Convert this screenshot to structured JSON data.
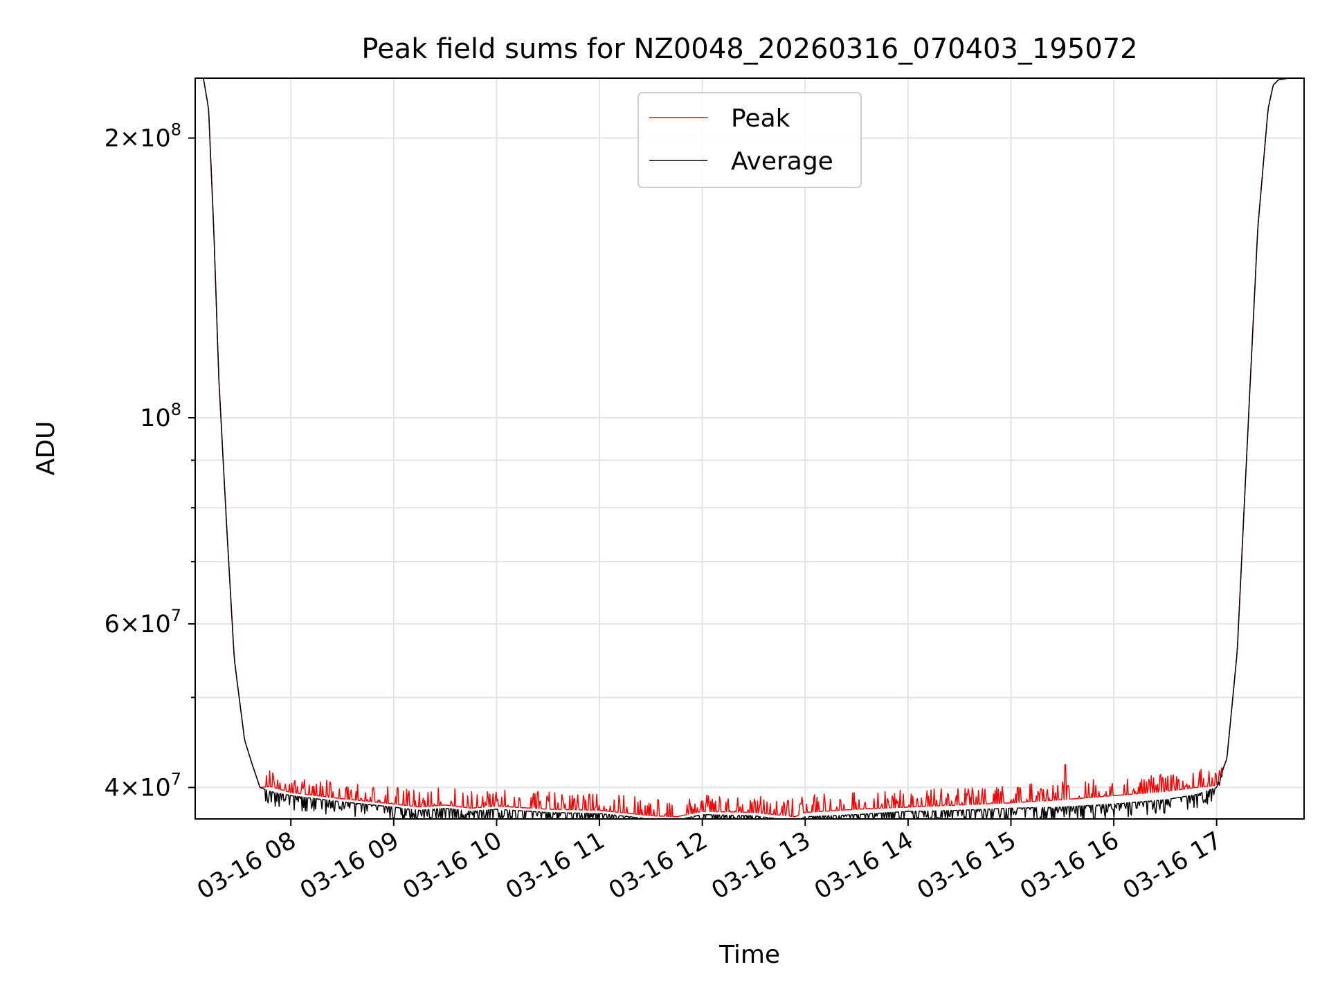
{
  "chart_data": {
    "type": "line",
    "title": "Peak field sums for NZ0048_20260316_070403_195072",
    "xlabel": "Time",
    "ylabel": "ADU",
    "yscale": "log",
    "ylim": [
      37000000,
      232000000
    ],
    "xlim_hours": [
      7.07,
      17.85
    ],
    "grid": true,
    "legend": {
      "location": "upper center",
      "entries": [
        "Peak",
        "Average"
      ]
    },
    "x_ticks": [
      {
        "label": "03-16 08",
        "hour": 8
      },
      {
        "label": "03-16 09",
        "hour": 9
      },
      {
        "label": "03-16 10",
        "hour": 10
      },
      {
        "label": "03-16 11",
        "hour": 11
      },
      {
        "label": "03-16 12",
        "hour": 12
      },
      {
        "label": "03-16 13",
        "hour": 13
      },
      {
        "label": "03-16 14",
        "hour": 14
      },
      {
        "label": "03-16 15",
        "hour": 15
      },
      {
        "label": "03-16 16",
        "hour": 16
      },
      {
        "label": "03-16 17",
        "hour": 17
      }
    ],
    "y_major_ticks": [
      {
        "value": 40000000,
        "mantissa": "4",
        "exponent": "7"
      },
      {
        "value": 60000000,
        "mantissa": "6",
        "exponent": "7"
      },
      {
        "value": 100000000,
        "mantissa": "",
        "exponent": "8"
      },
      {
        "value": 200000000,
        "mantissa": "2",
        "exponent": "8"
      }
    ],
    "y_minor_ticks": [
      50000000,
      70000000,
      80000000,
      90000000
    ],
    "series": [
      {
        "name": "Peak",
        "color": "#ff0000",
        "x_hours": [
          7.07,
          7.15,
          7.2,
          7.25,
          7.3,
          7.38,
          7.45,
          7.55,
          7.62,
          7.7,
          7.8,
          7.9,
          8.0,
          8.5,
          9.0,
          9.25,
          9.5,
          9.75,
          10.0,
          10.5,
          11.0,
          11.5,
          11.75,
          12.0,
          12.5,
          12.9,
          13.0,
          13.5,
          14.0,
          14.5,
          15.0,
          15.5,
          16.0,
          16.5,
          16.8,
          17.0,
          17.1,
          17.2,
          17.3,
          17.4,
          17.5,
          17.55,
          17.6,
          17.7,
          17.85
        ],
        "values": [
          232000000,
          232000000,
          215000000,
          160000000,
          110000000,
          75000000,
          55000000,
          45000000,
          42500000,
          40000000,
          40100000,
          39800000,
          39500000,
          38900000,
          38400000,
          38100000,
          38300000,
          38000000,
          38200000,
          37900000,
          37800000,
          37300000,
          37200000,
          37700000,
          37600000,
          37200000,
          37600000,
          37900000,
          38100000,
          38300000,
          38500000,
          38800000,
          39200000,
          39600000,
          40000000,
          40200000,
          43000000,
          56000000,
          95000000,
          160000000,
          215000000,
          228000000,
          231000000,
          232000000,
          232000000
        ]
      },
      {
        "name": "Average",
        "color": "#000000",
        "x_hours": [
          7.07,
          7.15,
          7.2,
          7.25,
          7.3,
          7.38,
          7.45,
          7.55,
          7.62,
          7.7,
          7.8,
          7.9,
          8.0,
          8.5,
          9.0,
          9.25,
          9.5,
          9.75,
          10.0,
          10.5,
          11.0,
          11.5,
          11.75,
          12.0,
          12.5,
          12.9,
          13.0,
          13.5,
          14.0,
          14.5,
          15.0,
          15.5,
          16.0,
          16.5,
          16.8,
          17.0,
          17.1,
          17.2,
          17.3,
          17.4,
          17.5,
          17.55,
          17.6,
          17.7,
          17.85
        ],
        "values": [
          232000000,
          232000000,
          215000000,
          160000000,
          110000000,
          75000000,
          55000000,
          45000000,
          42500000,
          40000000,
          39600000,
          39400000,
          39200000,
          38600000,
          38100000,
          37800000,
          38000000,
          37700000,
          37900000,
          37600000,
          37500000,
          37000000,
          36900000,
          37400000,
          37300000,
          36800000,
          37200000,
          37400000,
          37700000,
          37800000,
          38000000,
          38100000,
          38400000,
          38800000,
          39300000,
          40000000,
          43000000,
          56000000,
          95000000,
          160000000,
          215000000,
          228000000,
          231000000,
          232000000,
          232000000
        ]
      }
    ]
  }
}
